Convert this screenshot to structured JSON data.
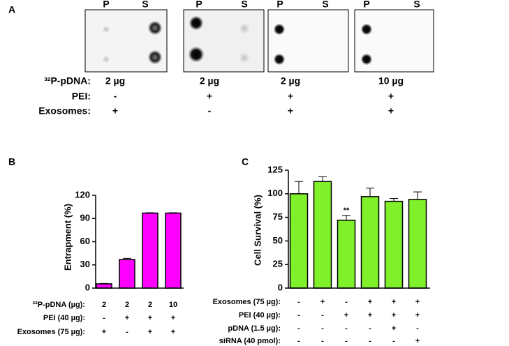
{
  "panel_a": {
    "label": "A",
    "blots": [
      {
        "lanes": [
          "P",
          "S"
        ]
      },
      {
        "lanes": [
          "P",
          "S"
        ]
      },
      {
        "lanes": [
          "P",
          "S"
        ]
      },
      {
        "lanes": [
          "P",
          "S"
        ]
      }
    ],
    "rows": [
      {
        "label": "³²P-pDNA:",
        "cells": [
          "2 µg",
          "2 µg",
          "2 µg",
          "10 µg"
        ]
      },
      {
        "label": "PEI:",
        "cells": [
          "-",
          "+",
          "+",
          "+"
        ]
      },
      {
        "label": "Exosomes:",
        "cells": [
          "+",
          "-",
          "+",
          "+"
        ]
      }
    ]
  },
  "chart_data": [
    {
      "type": "bar",
      "panel_label": "B",
      "y_label": "Entrapment (%)",
      "values": [
        5.5,
        37,
        97,
        97
      ],
      "errors": [
        0.5,
        1.5,
        0.5,
        0.5
      ],
      "color": "#ff00ff",
      "ylim": [
        0,
        120
      ],
      "yticks": [
        0,
        30,
        60,
        90,
        120
      ],
      "conditions": [
        {
          "label": "³²P-pDNA (µg):",
          "cells": [
            "2",
            "2",
            "2",
            "10"
          ]
        },
        {
          "label": "PEI (40 µg):",
          "cells": [
            "-",
            "+",
            "+",
            "+"
          ]
        },
        {
          "label": "Exosomes (75 µg):",
          "cells": [
            "+",
            "-",
            "+",
            "+"
          ]
        }
      ]
    },
    {
      "type": "bar",
      "panel_label": "C",
      "y_label": "Cell Survival (%)",
      "values": [
        100,
        113,
        72,
        97,
        92,
        94
      ],
      "errors": [
        13,
        5,
        5,
        9,
        3,
        8
      ],
      "color": "#7ff02a",
      "ylim": [
        0,
        125
      ],
      "yticks": [
        0,
        25,
        50,
        75,
        100,
        125
      ],
      "annotations": [
        {
          "index": 2,
          "text": "**"
        }
      ],
      "conditions": [
        {
          "label": "Exosomes (75 µg):",
          "cells": [
            "-",
            "+",
            "-",
            "+",
            "+",
            "+"
          ]
        },
        {
          "label": "PEI (40 µg):",
          "cells": [
            "-",
            "-",
            "+",
            "+",
            "+",
            "+"
          ]
        },
        {
          "label": "pDNA (1.5 µg):",
          "cells": [
            "-",
            "-",
            "-",
            "-",
            "+",
            "-"
          ]
        },
        {
          "label": "siRNA (40 pmol):",
          "cells": [
            "-",
            "-",
            "-",
            "-",
            "-",
            "+"
          ]
        }
      ]
    }
  ]
}
